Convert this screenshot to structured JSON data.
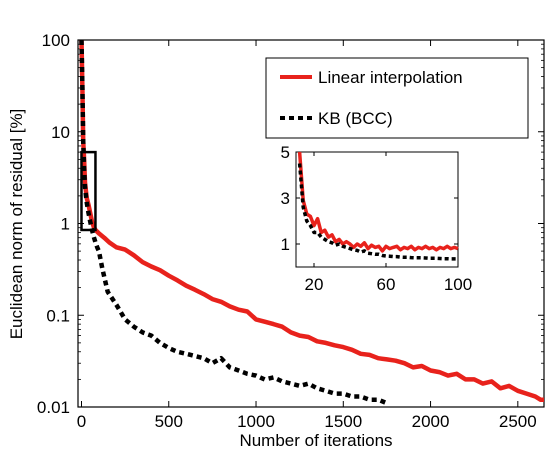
{
  "chart_data": {
    "type": "line",
    "ylog": true,
    "xlabel": "Number of iterations",
    "ylabel": "Euclidean norm of residual [%]",
    "xlim": [
      -20,
      2650
    ],
    "ylim": [
      0.01,
      100
    ],
    "xticks": [
      0,
      500,
      1000,
      1500,
      2000,
      2500
    ],
    "xtick_labels": [
      "0",
      "500",
      "1000",
      "1500",
      "2000",
      "2500"
    ],
    "yticks": [
      0.01,
      0.1,
      1,
      10,
      100
    ],
    "ytick_labels": [
      "0.01",
      "0.1",
      "1",
      "10",
      "100"
    ],
    "grid": false,
    "legend": "top-right",
    "series": [
      {
        "name": "Linear interpolation",
        "color": "#e8221c",
        "style": "solid",
        "x": [
          0,
          5,
          10,
          15,
          20,
          30,
          40,
          50,
          60,
          70,
          80,
          100,
          130,
          160,
          200,
          250,
          300,
          350,
          400,
          450,
          500,
          550,
          600,
          650,
          700,
          750,
          800,
          850,
          900,
          950,
          1000,
          1050,
          1100,
          1150,
          1200,
          1250,
          1300,
          1350,
          1400,
          1450,
          1500,
          1550,
          1600,
          1650,
          1700,
          1750,
          1800,
          1850,
          1900,
          1950,
          2000,
          2050,
          2100,
          2150,
          2200,
          2250,
          2300,
          2350,
          2400,
          2450,
          2500,
          2550,
          2600,
          2630,
          2650
        ],
        "y": [
          100,
          30,
          8,
          5,
          2.8,
          1.9,
          1.6,
          1.3,
          1.05,
          0.92,
          0.85,
          0.78,
          0.7,
          0.62,
          0.55,
          0.52,
          0.45,
          0.38,
          0.34,
          0.31,
          0.27,
          0.24,
          0.21,
          0.19,
          0.17,
          0.15,
          0.14,
          0.125,
          0.115,
          0.11,
          0.09,
          0.085,
          0.08,
          0.075,
          0.065,
          0.06,
          0.058,
          0.052,
          0.05,
          0.047,
          0.045,
          0.042,
          0.038,
          0.037,
          0.034,
          0.033,
          0.032,
          0.03,
          0.027,
          0.028,
          0.025,
          0.024,
          0.022,
          0.023,
          0.02,
          0.02,
          0.018,
          0.019,
          0.016,
          0.017,
          0.015,
          0.014,
          0.013,
          0.012,
          0.012
        ]
      },
      {
        "name": "KB (BCC)",
        "color": "#000000",
        "style": "dashed",
        "x": [
          0,
          5,
          10,
          15,
          20,
          30,
          40,
          50,
          60,
          70,
          80,
          90,
          100,
          120,
          150,
          200,
          250,
          300,
          350,
          400,
          450,
          500,
          550,
          600,
          650,
          700,
          750,
          800,
          850,
          900,
          950,
          1000,
          1050,
          1100,
          1150,
          1200,
          1250,
          1300,
          1350,
          1400,
          1450,
          1500,
          1550,
          1600,
          1650,
          1700,
          1750
        ],
        "y": [
          100,
          30,
          8,
          4,
          2.5,
          1.7,
          1.3,
          1.05,
          0.85,
          0.72,
          0.62,
          0.55,
          0.5,
          0.32,
          0.18,
          0.13,
          0.09,
          0.075,
          0.065,
          0.06,
          0.05,
          0.044,
          0.04,
          0.038,
          0.036,
          0.034,
          0.03,
          0.034,
          0.027,
          0.025,
          0.023,
          0.022,
          0.02,
          0.021,
          0.019,
          0.018,
          0.017,
          0.018,
          0.016,
          0.015,
          0.014,
          0.014,
          0.013,
          0.013,
          0.012,
          0.012,
          0.011
        ]
      }
    ],
    "annotations": [
      {
        "type": "rectangle",
        "x_range": [
          0,
          80
        ],
        "y_range": [
          0.85,
          6
        ]
      }
    ],
    "inset": {
      "xlim": [
        10,
        100
      ],
      "ylim": [
        0,
        5
      ],
      "xticks": [
        20,
        60,
        100
      ],
      "xtick_labels": [
        "20",
        "60",
        "100"
      ],
      "yticks": [
        1,
        3,
        5
      ],
      "ytick_labels": [
        "1",
        "3",
        "5"
      ],
      "series": [
        {
          "name": "Linear interpolation",
          "x": [
            12,
            14,
            16,
            18,
            20,
            22,
            24,
            26,
            28,
            30,
            32,
            34,
            36,
            38,
            40,
            42,
            44,
            46,
            48,
            50,
            52,
            54,
            56,
            58,
            60,
            62,
            64,
            66,
            68,
            70,
            72,
            74,
            76,
            78,
            80,
            82,
            84,
            86,
            88,
            90,
            92,
            94,
            96,
            98,
            100
          ],
          "y": [
            5.0,
            2.9,
            2.3,
            2.2,
            1.8,
            2.1,
            1.5,
            1.6,
            1.3,
            1.4,
            1.1,
            1.2,
            1.0,
            1.1,
            1.0,
            0.85,
            1.0,
            0.9,
            1.05,
            0.8,
            0.95,
            0.85,
            0.9,
            0.7,
            0.9,
            0.8,
            0.85,
            0.9,
            0.75,
            0.85,
            0.8,
            0.9,
            0.75,
            0.85,
            0.8,
            0.9,
            0.8,
            0.85,
            0.75,
            0.85,
            0.8,
            0.9,
            0.8,
            0.85,
            0.8
          ]
        },
        {
          "name": "KB (BCC)",
          "x": [
            12,
            14,
            16,
            18,
            20,
            22,
            24,
            26,
            28,
            30,
            32,
            34,
            36,
            38,
            40,
            42,
            44,
            46,
            48,
            50,
            52,
            54,
            56,
            58,
            60,
            62,
            64,
            66,
            68,
            70,
            72,
            74,
            76,
            78,
            80,
            82,
            84,
            86,
            88,
            90,
            92,
            94,
            96,
            98,
            100
          ],
          "y": [
            4.5,
            2.6,
            2.0,
            1.8,
            1.5,
            1.5,
            1.3,
            1.2,
            1.1,
            1.05,
            0.95,
            1.0,
            0.9,
            0.85,
            0.8,
            0.75,
            0.72,
            0.65,
            0.7,
            0.6,
            0.58,
            0.55,
            0.55,
            0.5,
            0.48,
            0.47,
            0.45,
            0.45,
            0.43,
            0.42,
            0.42,
            0.41,
            0.4,
            0.4,
            0.4,
            0.39,
            0.38,
            0.38,
            0.38,
            0.37,
            0.36,
            0.36,
            0.35,
            0.35,
            0.35
          ]
        }
      ]
    }
  }
}
